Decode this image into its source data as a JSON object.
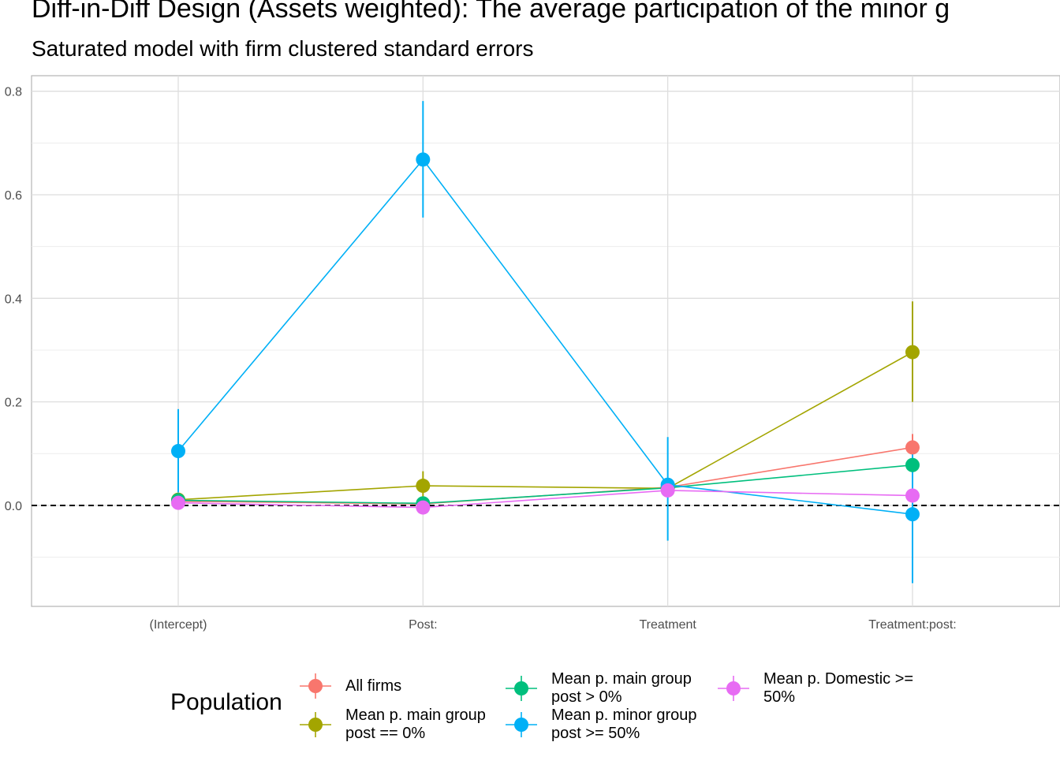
{
  "chart_data": {
    "type": "line",
    "title": "Diff-in-Diff Design (Assets weighted): The average participation of the minor g",
    "subtitle": "Saturated model with firm clustered standard errors",
    "categories": [
      "(Intercept)",
      "Post:",
      "Treatment",
      "Treatment:post:"
    ],
    "yticks": [
      "0.0",
      "0.2",
      "0.4",
      "0.6",
      "0.8"
    ],
    "ylim": [
      -0.195,
      0.83
    ],
    "reference_line": 0,
    "grid": true,
    "legend_title": "Population",
    "legend_position": "bottom",
    "series": [
      {
        "name": "All firms",
        "color": "#F8766D",
        "values": [
          0.008,
          0.003,
          0.035,
          0.112
        ],
        "lower": [
          0.002,
          -0.003,
          0.03,
          0.088
        ],
        "upper": [
          0.014,
          0.009,
          0.04,
          0.138
        ]
      },
      {
        "name": "Mean p. main group\npost == 0%",
        "color": "#A3A500",
        "values": [
          0.011,
          0.038,
          0.033,
          0.296
        ],
        "lower": [
          0.005,
          0.012,
          0.027,
          0.2
        ],
        "upper": [
          0.017,
          0.066,
          0.039,
          0.394
        ]
      },
      {
        "name": "Mean p. main group\npost > 0%",
        "color": "#00BF7D",
        "values": [
          0.01,
          0.004,
          0.034,
          0.078
        ],
        "lower": [
          0.004,
          -0.002,
          0.028,
          0.064
        ],
        "upper": [
          0.016,
          0.01,
          0.04,
          0.092
        ]
      },
      {
        "name": "Mean p. minor group\npost >= 50%",
        "color": "#00B0F6",
        "values": [
          0.105,
          0.668,
          0.04,
          -0.017
        ],
        "lower": [
          0.025,
          0.556,
          -0.068,
          -0.15
        ],
        "upper": [
          0.186,
          0.781,
          0.132,
          0.102
        ]
      },
      {
        "name": "Mean p. Domestic >=\n50%",
        "color": "#E76BF3",
        "values": [
          0.005,
          -0.004,
          0.029,
          0.019
        ],
        "lower": [
          -0.001,
          -0.01,
          0.023,
          0.005
        ],
        "upper": [
          0.011,
          0.002,
          0.035,
          0.033
        ]
      }
    ]
  }
}
